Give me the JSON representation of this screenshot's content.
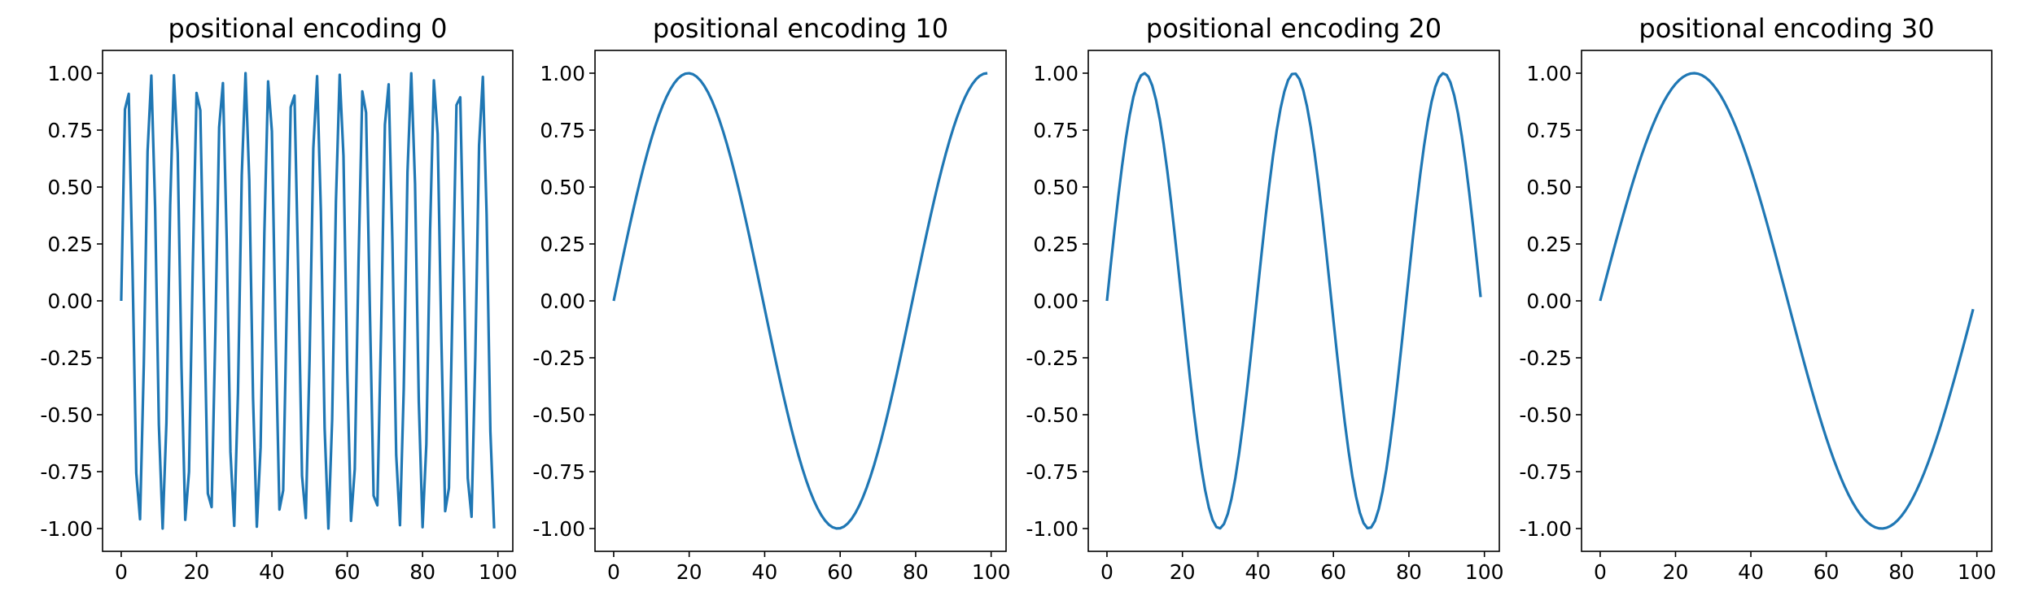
{
  "chart_data": [
    {
      "type": "line",
      "title": "positional encoding 0",
      "xlabel": "",
      "ylabel": "",
      "xlim": [
        -4.95,
        103.95
      ],
      "ylim": [
        -1.1,
        1.1
      ],
      "xticks": [
        "0",
        "20",
        "40",
        "60",
        "80",
        "100"
      ],
      "yticks": [
        "-1.00",
        "-0.75",
        "-0.50",
        "-0.25",
        "0.00",
        "0.25",
        "0.50",
        "0.75",
        "1.00"
      ],
      "grid": false,
      "series": [
        {
          "function": "sin",
          "frequency": 1.0,
          "x_start": 0,
          "x_end": 99,
          "color": "#1f77b4"
        }
      ]
    },
    {
      "type": "line",
      "title": "positional encoding 10",
      "xlabel": "",
      "ylabel": "",
      "xlim": [
        -4.95,
        103.95
      ],
      "ylim": [
        -1.1,
        1.1
      ],
      "xticks": [
        "0",
        "20",
        "40",
        "60",
        "80",
        "100"
      ],
      "yticks": [
        "-1.00",
        "-0.75",
        "-0.50",
        "-0.25",
        "0.00",
        "0.25",
        "0.50",
        "0.75",
        "1.00"
      ],
      "grid": false,
      "series": [
        {
          "function": "sin",
          "frequency": 0.0794,
          "x_start": 0,
          "x_end": 99,
          "color": "#1f77b4"
        }
      ]
    },
    {
      "type": "line",
      "title": "positional encoding 20",
      "xlabel": "",
      "ylabel": "",
      "xlim": [
        -4.95,
        103.95
      ],
      "ylim": [
        -1.1,
        1.1
      ],
      "xticks": [
        "0",
        "20",
        "40",
        "60",
        "80",
        "100"
      ],
      "yticks": [
        "-1.00",
        "-0.75",
        "-0.50",
        "-0.25",
        "0.00",
        "0.25",
        "0.50",
        "0.75",
        "1.00"
      ],
      "grid": false,
      "series": [
        {
          "function": "sin",
          "frequency": 0.1585,
          "x_start": 0,
          "x_end": 99,
          "color": "#1f77b4"
        }
      ]
    },
    {
      "type": "line",
      "title": "positional encoding 30",
      "xlabel": "",
      "ylabel": "",
      "xlim": [
        -4.95,
        103.95
      ],
      "ylim": [
        -1.1,
        1.1
      ],
      "xticks": [
        "0",
        "20",
        "40",
        "60",
        "80",
        "100"
      ],
      "yticks": [
        "-1.00",
        "-0.75",
        "-0.50",
        "-0.25",
        "0.00",
        "0.25",
        "0.50",
        "0.75",
        "1.00"
      ],
      "grid": false,
      "series": [
        {
          "function": "sin",
          "frequency": 0.0631,
          "x_start": 0,
          "x_end": 99,
          "color": "#1f77b4"
        }
      ]
    }
  ]
}
